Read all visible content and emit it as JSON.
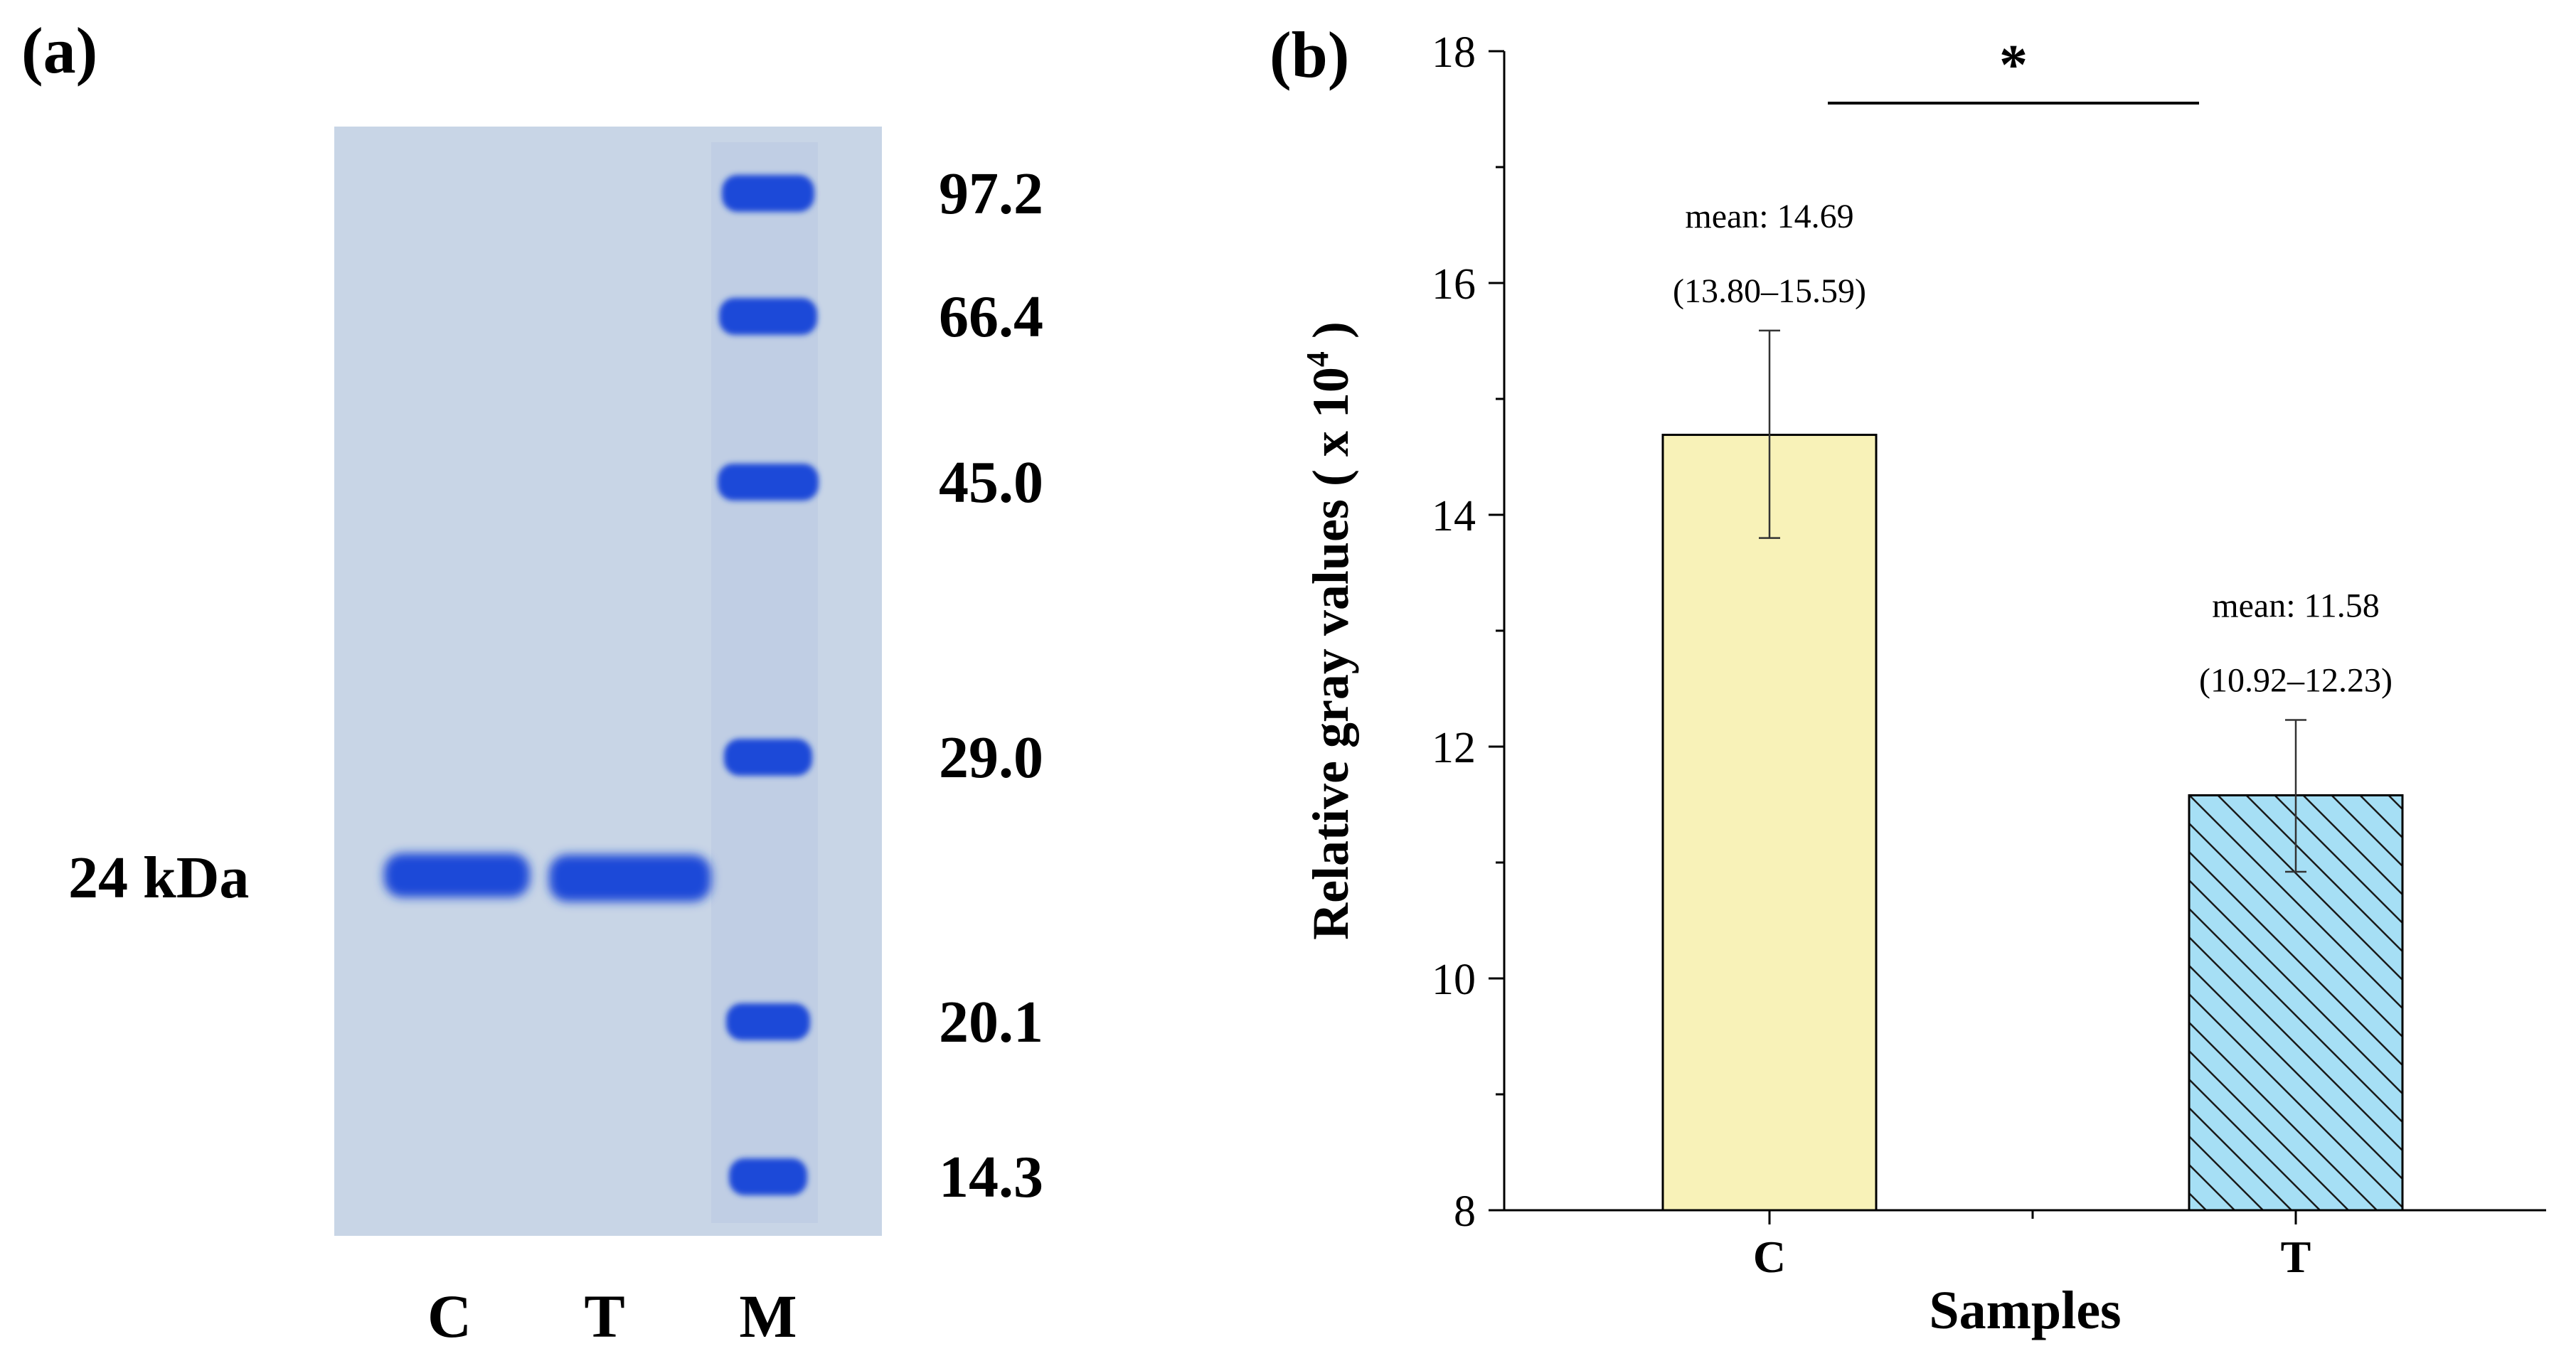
{
  "panel_a": {
    "label": "(a)",
    "band_label": "24 kDa",
    "lanes": [
      "C",
      "T",
      "M"
    ],
    "marker_kda": [
      "97.2",
      "66.4",
      "45.0",
      "29.0",
      "20.1",
      "14.3"
    ],
    "colors": {
      "gel": "#c8d5e6",
      "band": "#1a48d8"
    }
  },
  "panel_b": {
    "label": "(b)",
    "significance": "*"
  },
  "chart_data": {
    "type": "bar",
    "categories": [
      "C",
      "T"
    ],
    "values": [
      14.69,
      11.58
    ],
    "error_low": [
      13.8,
      10.92
    ],
    "error_high": [
      15.59,
      12.23
    ],
    "annotations": [
      {
        "mean": "mean: 14.69",
        "range": "(13.80–15.59)"
      },
      {
        "mean": "mean: 11.58",
        "range": "(10.92–12.23)"
      }
    ],
    "xlabel": "Samples",
    "ylabel_main": "Relative gray values ( x 10",
    "ylabel_sup": "4",
    "ylabel_end": ")",
    "ylim": [
      8,
      18
    ],
    "yticks": [
      8,
      10,
      12,
      14,
      16,
      18
    ],
    "bar_fills": [
      "#f8f2b8",
      "#a6dff5"
    ],
    "bar_patterns": [
      "none",
      "diagonal-hatch"
    ],
    "significance_between": [
      "C",
      "T"
    ]
  }
}
